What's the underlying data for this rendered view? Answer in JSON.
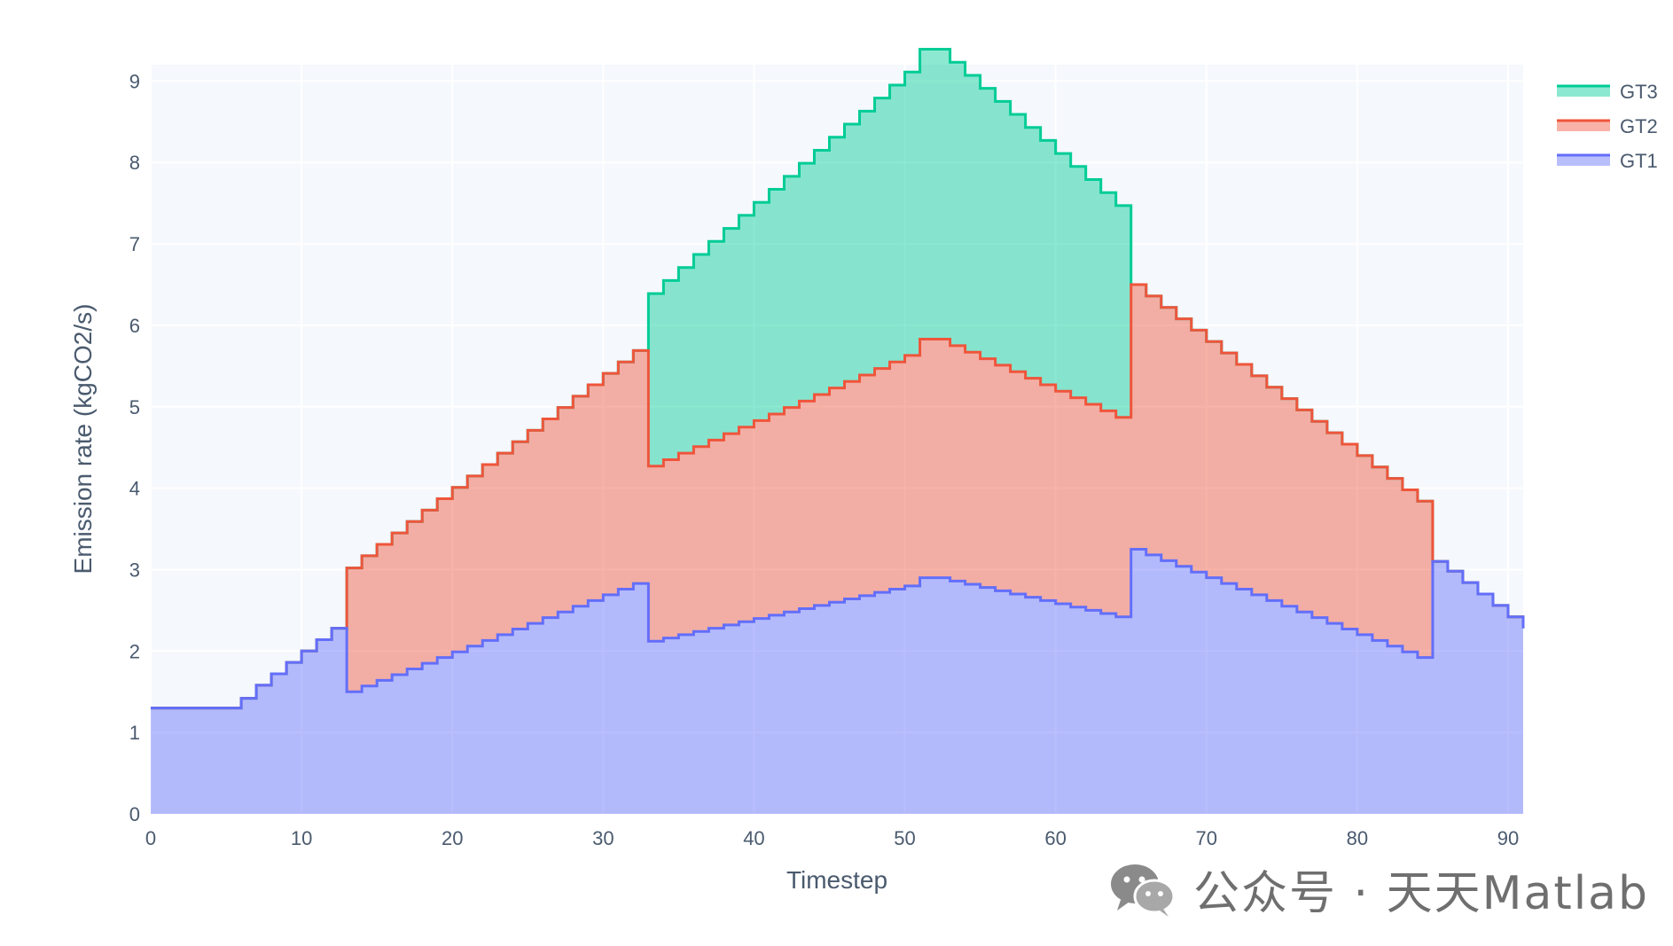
{
  "chart_data": {
    "type": "area",
    "stacked": true,
    "step": true,
    "xlabel": "Timestep",
    "ylabel": "Emission rate (kgCO2/s)",
    "xlim": [
      0,
      91
    ],
    "ylim": [
      0,
      9.2
    ],
    "x_ticks": [
      0,
      10,
      20,
      30,
      40,
      50,
      60,
      70,
      80,
      90
    ],
    "y_ticks": [
      0,
      1,
      2,
      3,
      4,
      5,
      6,
      7,
      8,
      9
    ],
    "grid": true,
    "legend_position": "top-right",
    "legend": [
      "GT3",
      "GT2",
      "GT1"
    ],
    "x": [
      0,
      1,
      2,
      3,
      4,
      5,
      6,
      7,
      8,
      9,
      10,
      11,
      12,
      13,
      14,
      15,
      16,
      17,
      18,
      19,
      20,
      21,
      22,
      23,
      24,
      25,
      26,
      27,
      28,
      29,
      30,
      31,
      32,
      33,
      34,
      35,
      36,
      37,
      38,
      39,
      40,
      41,
      42,
      43,
      44,
      45,
      46,
      47,
      48,
      49,
      50,
      51,
      52,
      53,
      54,
      55,
      56,
      57,
      58,
      59,
      60,
      61,
      62,
      63,
      64,
      65,
      66,
      67,
      68,
      69,
      70,
      71,
      72,
      73,
      74,
      75,
      76,
      77,
      78,
      79,
      80,
      81,
      82,
      83,
      84,
      85,
      86,
      87,
      88,
      89,
      90,
      91
    ],
    "series": [
      {
        "name": "GT1",
        "color": "#636efa",
        "values": [
          1.3,
          1.3,
          1.3,
          1.3,
          1.3,
          1.3,
          1.42,
          1.58,
          1.72,
          1.86,
          2.0,
          2.14,
          2.28,
          1.5,
          1.57,
          1.64,
          1.71,
          1.78,
          1.85,
          1.92,
          1.99,
          2.06,
          2.13,
          2.2,
          2.27,
          2.34,
          2.41,
          2.48,
          2.55,
          2.62,
          2.69,
          2.76,
          2.83,
          2.12,
          2.16,
          2.2,
          2.24,
          2.28,
          2.32,
          2.36,
          2.4,
          2.44,
          2.48,
          2.52,
          2.56,
          2.6,
          2.64,
          2.68,
          2.72,
          2.76,
          2.8,
          2.9,
          2.9,
          2.86,
          2.82,
          2.78,
          2.74,
          2.7,
          2.66,
          2.62,
          2.58,
          2.54,
          2.5,
          2.46,
          2.42,
          3.25,
          3.18,
          3.11,
          3.04,
          2.97,
          2.9,
          2.83,
          2.76,
          2.69,
          2.62,
          2.55,
          2.48,
          2.41,
          2.34,
          2.27,
          2.2,
          2.13,
          2.06,
          1.99,
          1.92,
          3.1,
          2.98,
          2.84,
          2.7,
          2.56,
          2.42,
          2.28
        ]
      },
      {
        "name": "GT2",
        "color": "#ef553b",
        "values": [
          0,
          0,
          0,
          0,
          0,
          0,
          0,
          0,
          0,
          0,
          0,
          0,
          0,
          1.52,
          1.6,
          1.67,
          1.74,
          1.81,
          1.88,
          1.95,
          2.02,
          2.09,
          2.16,
          2.23,
          2.3,
          2.37,
          2.44,
          2.51,
          2.58,
          2.65,
          2.72,
          2.79,
          2.86,
          2.15,
          2.19,
          2.23,
          2.27,
          2.31,
          2.35,
          2.39,
          2.43,
          2.47,
          2.51,
          2.55,
          2.59,
          2.63,
          2.67,
          2.71,
          2.75,
          2.79,
          2.83,
          2.93,
          2.93,
          2.89,
          2.85,
          2.81,
          2.77,
          2.73,
          2.69,
          2.65,
          2.61,
          2.57,
          2.53,
          2.49,
          2.45,
          3.25,
          3.18,
          3.11,
          3.04,
          2.97,
          2.9,
          2.83,
          2.76,
          2.69,
          2.62,
          2.55,
          2.48,
          2.41,
          2.34,
          2.27,
          2.2,
          2.13,
          2.06,
          1.99,
          1.92,
          0,
          0,
          0,
          0,
          0,
          0,
          0
        ]
      },
      {
        "name": "GT3",
        "color": "#00cc96",
        "values": [
          0,
          0,
          0,
          0,
          0,
          0,
          0,
          0,
          0,
          0,
          0,
          0,
          0,
          0,
          0,
          0,
          0,
          0,
          0,
          0,
          0,
          0,
          0,
          0,
          0,
          0,
          0,
          0,
          0,
          0,
          0,
          0,
          0,
          2.12,
          2.2,
          2.28,
          2.36,
          2.44,
          2.52,
          2.6,
          2.68,
          2.76,
          2.84,
          2.92,
          3.0,
          3.08,
          3.16,
          3.24,
          3.32,
          3.4,
          3.48,
          3.56,
          3.56,
          3.48,
          3.4,
          3.32,
          3.24,
          3.16,
          3.08,
          3.0,
          2.92,
          2.84,
          2.76,
          2.68,
          2.6,
          0,
          0,
          0,
          0,
          0,
          0,
          0,
          0,
          0,
          0,
          0,
          0,
          0,
          0,
          0,
          0,
          0,
          0,
          0,
          0,
          0,
          0,
          0,
          0,
          0,
          0,
          0
        ]
      }
    ]
  },
  "watermark": {
    "text": "公众号 · 天天Matlab",
    "icon": "wechat-icon"
  }
}
